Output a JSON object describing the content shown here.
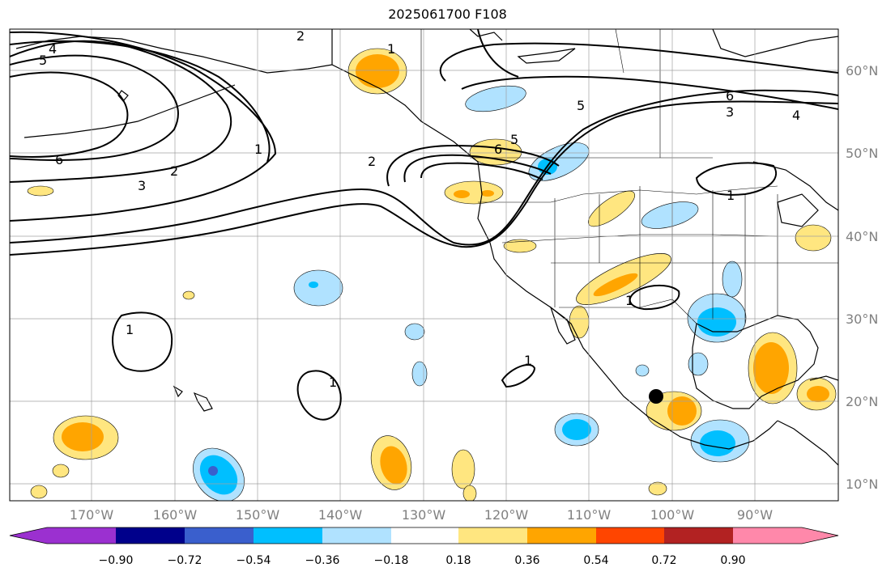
{
  "title": "2025061700 F108",
  "latitude_labels": [
    "60°N",
    "50°N",
    "40°N",
    "30°N",
    "20°N",
    "10°N"
  ],
  "longitude_labels": [
    "170°W",
    "160°W",
    "150°W",
    "140°W",
    "130°W",
    "120°W",
    "110°W",
    "100°W",
    "90°W"
  ],
  "colorbar": {
    "colors": [
      "#9b30d0",
      "#00008b",
      "#3a5fcd",
      "#00bfff",
      "#b0e2ff",
      "#ffffff",
      "#ffe680",
      "#ffa500",
      "#ff4500",
      "#b22222",
      "#ff88aa"
    ],
    "tick_labels": [
      "−0.90",
      "−0.72",
      "−0.54",
      "−0.36",
      "−0.18",
      "0.18",
      "0.36",
      "0.54",
      "0.72",
      "0.90"
    ]
  },
  "contour_labels": [
    "1",
    "2",
    "3",
    "4",
    "5",
    "6"
  ]
}
